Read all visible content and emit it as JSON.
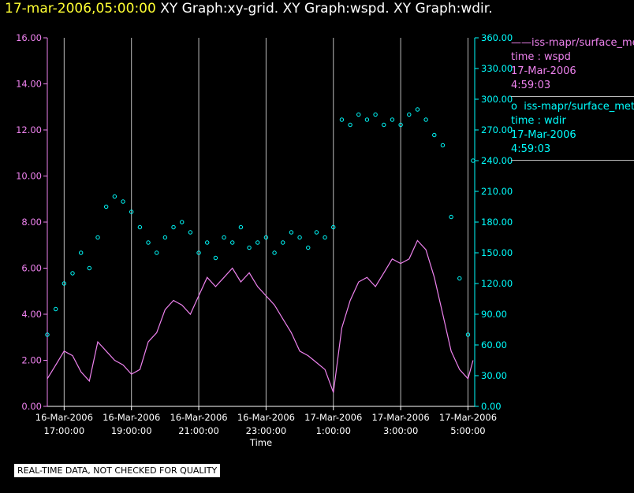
{
  "header": {
    "timestamp": "17-mar-2006,05:00:00",
    "graphs": "XY Graph:xy-grid.  XY Graph:wspd.  XY Graph:wdir."
  },
  "colors": {
    "wspd": "#ee82ee",
    "wdir": "#00ffff",
    "axis": "#ffffff",
    "grid": "#bbbbbb"
  },
  "legend": [
    {
      "symbol": "——",
      "series": "iss-mapr/surface_met",
      "line2": "time : wspd",
      "line3": "17-Mar-2006",
      "line4": "4:59:03",
      "color": "#ee82ee"
    },
    {
      "symbol": "o",
      "series": "iss-mapr/surface_met",
      "line2": "time : wdir",
      "line3": "17-Mar-2006",
      "line4": "4:59:03",
      "color": "#00ffff"
    }
  ],
  "footer": "REAL-TIME DATA, NOT CHECKED FOR QUALITY",
  "chart_data": {
    "type": "line",
    "xlabel": "Time",
    "x_range_hours": [
      16.5,
      29.2
    ],
    "x_ticks": [
      {
        "hour": 17,
        "line1": "16-Mar-2006",
        "line2": "17:00:00"
      },
      {
        "hour": 19,
        "line1": "16-Mar-2006",
        "line2": "19:00:00"
      },
      {
        "hour": 21,
        "line1": "16-Mar-2006",
        "line2": "21:00:00"
      },
      {
        "hour": 23,
        "line1": "16-Mar-2006",
        "line2": "23:00:00"
      },
      {
        "hour": 25,
        "line1": "17-Mar-2006",
        "line2": "1:00:00"
      },
      {
        "hour": 27,
        "line1": "17-Mar-2006",
        "line2": "3:00:00"
      },
      {
        "hour": 29,
        "line1": "17-Mar-2006",
        "line2": "5:00:00"
      }
    ],
    "grid_vertical": true,
    "left_axis": {
      "series": "wspd",
      "ylim": [
        0,
        16
      ],
      "ticks": [
        "0.00",
        "2.00",
        "4.00",
        "6.00",
        "8.00",
        "10.00",
        "12.00",
        "14.00",
        "16.00"
      ]
    },
    "right_axis": {
      "series": "wdir",
      "ylim": [
        0,
        360
      ],
      "ticks": [
        "0.00",
        "30.00",
        "60.00",
        "90.00",
        "120.00",
        "150.00",
        "180.00",
        "210.00",
        "240.00",
        "270.00",
        "300.00",
        "330.00",
        "360.00"
      ]
    },
    "series": [
      {
        "name": "iss-mapr/surface_met time : wspd",
        "axis": "left",
        "style": "line",
        "x": [
          16.5,
          16.75,
          17.0,
          17.25,
          17.5,
          17.75,
          18.0,
          18.25,
          18.5,
          18.75,
          19.0,
          19.25,
          19.5,
          19.75,
          20.0,
          20.25,
          20.5,
          20.75,
          21.0,
          21.25,
          21.5,
          21.75,
          22.0,
          22.25,
          22.5,
          22.75,
          23.0,
          23.25,
          23.5,
          23.75,
          24.0,
          24.25,
          24.5,
          24.75,
          25.0,
          25.25,
          25.5,
          25.75,
          26.0,
          26.25,
          26.5,
          26.75,
          27.0,
          27.25,
          27.5,
          27.75,
          28.0,
          28.25,
          28.5,
          28.75,
          29.0,
          29.15
        ],
        "y": [
          1.2,
          1.8,
          2.4,
          2.2,
          1.5,
          1.1,
          2.8,
          2.4,
          2.0,
          1.8,
          1.4,
          1.6,
          2.8,
          3.2,
          4.2,
          4.6,
          4.4,
          4.0,
          4.8,
          5.6,
          5.2,
          5.6,
          6.0,
          5.4,
          5.8,
          5.2,
          4.8,
          4.4,
          3.8,
          3.2,
          2.4,
          2.2,
          1.9,
          1.6,
          0.6,
          3.4,
          4.6,
          5.4,
          5.6,
          5.2,
          5.8,
          6.4,
          6.2,
          6.4,
          7.2,
          6.8,
          5.6,
          4.0,
          2.4,
          1.6,
          1.2,
          2.0
        ]
      },
      {
        "name": "iss-mapr/surface_met time : wdir",
        "axis": "right",
        "style": "circles",
        "x": [
          16.5,
          16.75,
          17.0,
          17.25,
          17.5,
          17.75,
          18.0,
          18.25,
          18.5,
          18.75,
          19.0,
          19.25,
          19.5,
          19.75,
          20.0,
          20.25,
          20.5,
          20.75,
          21.0,
          21.25,
          21.5,
          21.75,
          22.0,
          22.25,
          22.5,
          22.75,
          23.0,
          23.25,
          23.5,
          23.75,
          24.0,
          24.25,
          24.5,
          24.75,
          25.0,
          25.25,
          25.5,
          25.75,
          26.0,
          26.25,
          26.5,
          26.75,
          27.0,
          27.25,
          27.5,
          27.75,
          28.0,
          28.25,
          28.5,
          28.75,
          29.0,
          29.15
        ],
        "y": [
          70,
          95,
          120,
          130,
          150,
          135,
          165,
          195,
          205,
          200,
          190,
          175,
          160,
          150,
          165,
          175,
          180,
          170,
          150,
          160,
          145,
          165,
          160,
          175,
          155,
          160,
          165,
          150,
          160,
          170,
          165,
          155,
          170,
          165,
          175,
          280,
          275,
          285,
          280,
          285,
          275,
          280,
          275,
          285,
          290,
          280,
          265,
          255,
          185,
          125,
          70,
          240
        ]
      }
    ]
  }
}
